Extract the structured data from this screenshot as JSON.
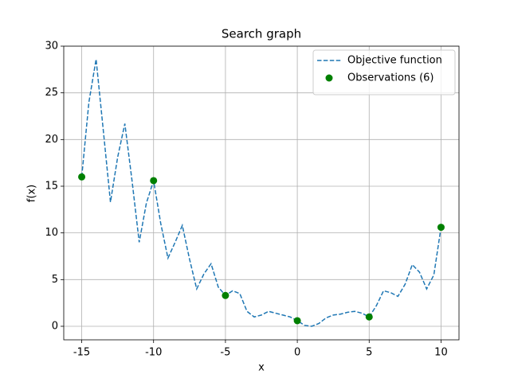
{
  "chart_data": {
    "type": "line",
    "title": "Search graph",
    "xlabel": "x",
    "ylabel": "f(x)",
    "xlim": [
      -16.25,
      11.25
    ],
    "ylim": [
      -1.45,
      30
    ],
    "xticks": [
      -15,
      -10,
      -5,
      0,
      5,
      10
    ],
    "yticks": [
      0,
      5,
      10,
      15,
      20,
      25,
      30
    ],
    "grid": true,
    "legend": "upper right",
    "series": [
      {
        "name": "Objective function",
        "type": "line",
        "style": "dashed",
        "color": "#1f77b4",
        "x": [
          -15,
          -14.5,
          -14,
          -13.5,
          -13,
          -12.5,
          -12,
          -11.5,
          -11,
          -10.5,
          -10,
          -9.5,
          -9,
          -8.5,
          -8,
          -7.5,
          -7,
          -6.5,
          -6,
          -5.5,
          -5,
          -4.5,
          -4,
          -3.5,
          -3,
          -2.5,
          -2,
          -1.5,
          -1,
          -0.5,
          0,
          0.5,
          1,
          1.5,
          2,
          2.5,
          3,
          3.5,
          4,
          4.5,
          5,
          5.5,
          6,
          6.5,
          7,
          7.5,
          8,
          8.5,
          9,
          9.5,
          10
        ],
        "values": [
          16.0,
          24.0,
          28.6,
          21.0,
          13.3,
          18.1,
          21.7,
          15.6,
          9.0,
          13.2,
          15.6,
          11.0,
          7.3,
          9.0,
          10.8,
          7.2,
          4.0,
          5.6,
          6.7,
          4.2,
          3.3,
          3.8,
          3.5,
          1.6,
          1.0,
          1.2,
          1.6,
          1.4,
          1.2,
          1.0,
          0.6,
          0.1,
          0.0,
          0.3,
          0.9,
          1.2,
          1.3,
          1.5,
          1.6,
          1.4,
          1.0,
          2.2,
          3.8,
          3.6,
          3.2,
          4.5,
          6.6,
          5.8,
          4.0,
          5.5,
          10.6
        ]
      },
      {
        "name": "Observations (6)",
        "type": "scatter",
        "color": "green",
        "x": [
          -15,
          -10,
          -5,
          0,
          5,
          10
        ],
        "values": [
          16.0,
          15.6,
          3.3,
          0.6,
          1.0,
          10.6
        ]
      }
    ]
  }
}
